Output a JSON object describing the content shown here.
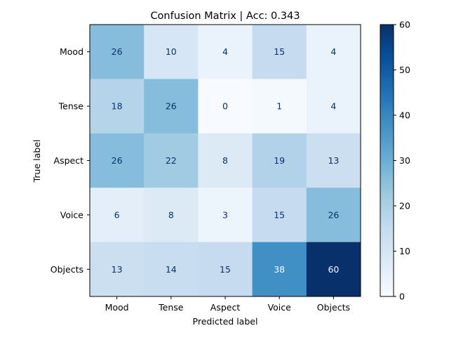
{
  "chart_data": {
    "type": "heatmap",
    "title": "Confusion Matrix | Acc: 0.343",
    "xlabel": "Predicted label",
    "ylabel": "True label",
    "x_categories": [
      "Mood",
      "Tense",
      "Aspect",
      "Voice",
      "Objects"
    ],
    "y_categories": [
      "Mood",
      "Tense",
      "Aspect",
      "Voice",
      "Objects"
    ],
    "values": [
      [
        26,
        10,
        4,
        15,
        4
      ],
      [
        18,
        26,
        0,
        1,
        4
      ],
      [
        26,
        22,
        8,
        19,
        13
      ],
      [
        6,
        8,
        3,
        15,
        26
      ],
      [
        13,
        14,
        15,
        38,
        60
      ]
    ],
    "colorscale": "Blues",
    "vmin": 0,
    "vmax": 60,
    "colorbar_ticks": [
      0,
      10,
      20,
      30,
      40,
      50,
      60
    ],
    "grid": false
  }
}
